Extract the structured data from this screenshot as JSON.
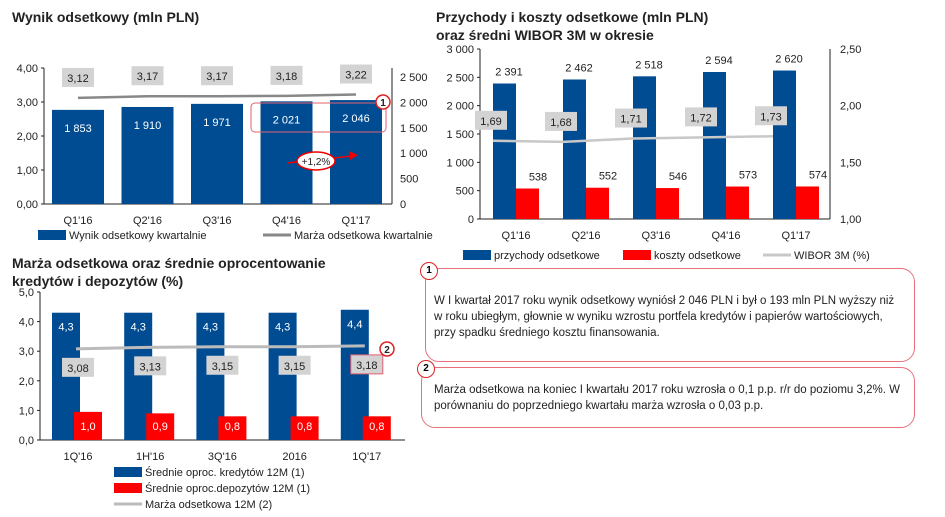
{
  "chart_data": [
    {
      "type": "bar",
      "title": "Wynik odsetkowy (mln PLN)",
      "categories": [
        "Q1'16",
        "Q2'16",
        "Q3'16",
        "Q4'16",
        "Q1'17"
      ],
      "series": [
        {
          "name": "Wynik odsetkowy kwartalnie",
          "type": "bar",
          "axis": "right",
          "color": "#004C93",
          "values": [
            1853,
            1910,
            1971,
            2021,
            2046
          ],
          "labels": [
            "1 853",
            "1 910",
            "1 971",
            "2 021",
            "2 046"
          ]
        },
        {
          "name": "Marża odsetkowa kwartalnie",
          "type": "line",
          "axis": "left",
          "color": "#888888",
          "values": [
            3.12,
            3.17,
            3.17,
            3.18,
            3.22
          ],
          "labels": [
            "3,12",
            "3,17",
            "3,17",
            "3,18",
            "3,22"
          ]
        }
      ],
      "left_ticks": [
        "0,00",
        "1,00",
        "2,00",
        "3,00",
        "4,00"
      ],
      "ylim_left": [
        0,
        4
      ],
      "right_ticks": [
        "0",
        "500",
        "1 000",
        "1 500",
        "2 000",
        "2 500"
      ],
      "ylim_right": [
        0,
        2700
      ],
      "annotation": "+1,2%",
      "callout": "1"
    },
    {
      "type": "bar",
      "title": "Przychody i koszty odsetkowe (mln PLN)",
      "subtitle": "oraz średni WIBOR 3M w okresie",
      "categories": [
        "Q1'16",
        "Q2'16",
        "Q3'16",
        "Q4'16",
        "Q1'17"
      ],
      "series": [
        {
          "name": "przychody odsetkowe",
          "type": "bar",
          "axis": "left",
          "color": "#004C93",
          "values": [
            2391,
            2462,
            2518,
            2594,
            2620
          ],
          "labels": [
            "2 391",
            "2 462",
            "2 518",
            "2 594",
            "2 620"
          ]
        },
        {
          "name": "koszty odsetkowe",
          "type": "bar",
          "axis": "left",
          "color": "#FF0000",
          "values": [
            538,
            552,
            546,
            573,
            574
          ],
          "labels": [
            "538",
            "552",
            "546",
            "573",
            "574"
          ]
        },
        {
          "name": "WIBOR 3M (%)",
          "type": "line",
          "axis": "right",
          "color": "#C8C8C8",
          "values": [
            1.69,
            1.68,
            1.71,
            1.72,
            1.73
          ],
          "labels": [
            "1,69",
            "1,68",
            "1,71",
            "1,72",
            "1,73"
          ]
        }
      ],
      "left_ticks": [
        "0",
        "500",
        "1 000",
        "1 500",
        "2 000",
        "2 500",
        "3 000"
      ],
      "ylim_left": [
        0,
        3000
      ],
      "right_ticks": [
        "1,00",
        "1,50",
        "2,00",
        "2,50"
      ],
      "ylim_right": [
        1,
        2.5
      ]
    },
    {
      "type": "bar",
      "title": "Marża odsetkowa oraz średnie oprocentowanie",
      "subtitle": "kredytów i depozytów (%)",
      "categories": [
        "1Q'16",
        "1H'16",
        "3Q'16",
        "2016",
        "1Q'17"
      ],
      "series": [
        {
          "name": "Średnie oproc. kredytów 12M (1)",
          "type": "bar",
          "color": "#004C93",
          "values": [
            4.3,
            4.3,
            4.3,
            4.3,
            4.4
          ],
          "labels": [
            "4,3",
            "4,3",
            "4,3",
            "4,3",
            "4,4"
          ]
        },
        {
          "name": "Średnie oproc.depozytów 12M (1)",
          "type": "bar",
          "color": "#FF0000",
          "values": [
            0.95,
            0.9,
            0.8,
            0.8,
            0.8
          ],
          "labels": [
            "1,0",
            "0,9",
            "0,8",
            "0,8",
            "0,8"
          ]
        },
        {
          "name": "Marża odsetkowa 12M (2)",
          "type": "line",
          "color": "#BBBBBB",
          "values": [
            3.08,
            3.13,
            3.15,
            3.15,
            3.18
          ],
          "labels": [
            "3,08",
            "3,13",
            "3,15",
            "3,15",
            "3,18"
          ]
        }
      ],
      "left_ticks": [
        "0,0",
        "1,0",
        "2,0",
        "3,0",
        "4,0",
        "5,0"
      ],
      "ylim_left": [
        0,
        5
      ],
      "callout": "2"
    }
  ],
  "notes": [
    {
      "badge": "1",
      "text": "W I kwartał 2017 roku wynik odsetkowy wyniósł 2 046 PLN i był o 193 mln PLN wyższy niż w roku ubiegłym, głownie w wyniku wzrostu portfela kredytów i papierów wartościowych, przy spadku średniego kosztu finansowania."
    },
    {
      "badge": "2",
      "text": "Marża odsetkowa na koniec I kwartału 2017 roku wzrosła o 0,1 p.p. r/r do poziomu 3,2%. W porównaniu do poprzedniego kwartału marża wzrosła o 0,03 p.p."
    }
  ]
}
